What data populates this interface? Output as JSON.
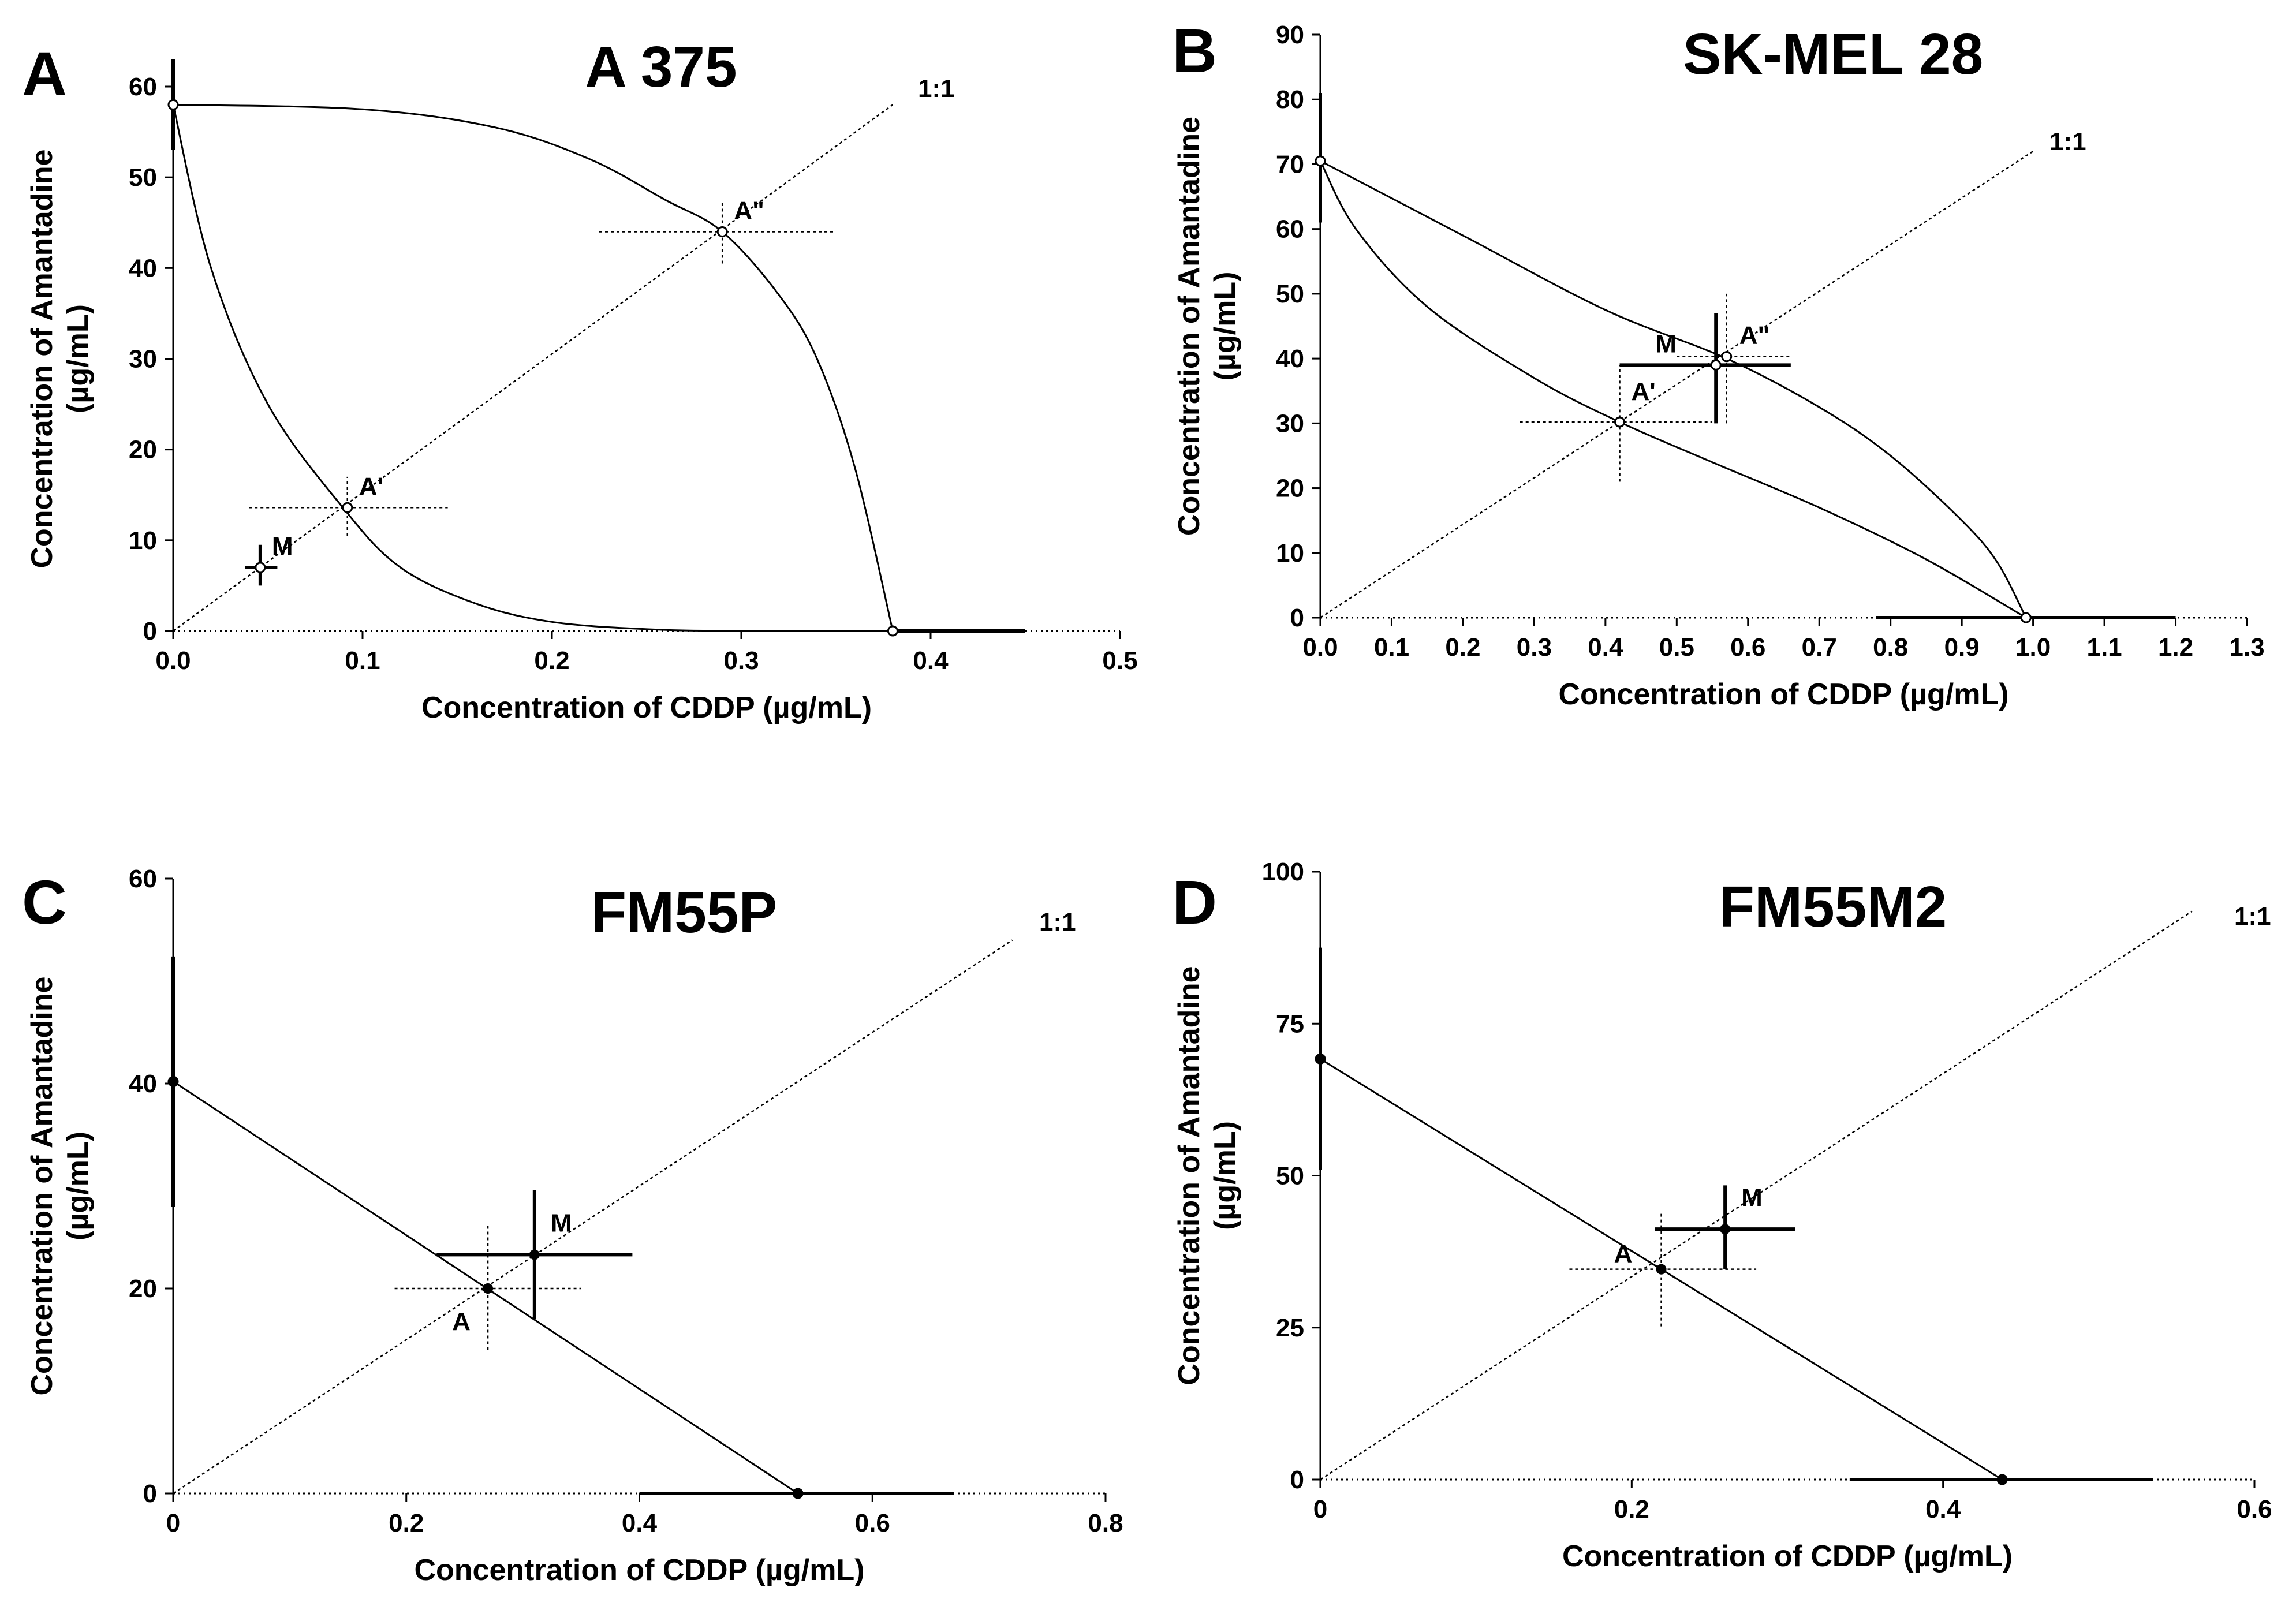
{
  "chart_data": [
    {
      "panel": "A",
      "title": "A 375",
      "type": "line",
      "xlabel": "Concentration of CDDP (µg/mL)",
      "ylabel": "Concentration of Amantadine",
      "ylabel_unit": "(µg/mL)",
      "xlim": [
        0,
        0.5
      ],
      "ylim": [
        0,
        60
      ],
      "xticks": [
        0,
        0.1,
        0.2,
        0.3,
        0.4,
        0.5
      ],
      "xtick_labels": [
        "0.0",
        "0.1",
        "0.2",
        "0.3",
        "0.4",
        "0.5"
      ],
      "yticks": [
        0,
        10,
        20,
        30,
        40,
        50,
        60
      ],
      "ytick_labels": [
        "0",
        "10",
        "20",
        "30",
        "40",
        "50",
        "60"
      ],
      "ray_end": [
        0.38,
        58
      ],
      "ray_label": "1:1",
      "isobole_lower": [
        [
          0,
          58
        ],
        [
          0.02,
          40
        ],
        [
          0.05,
          25
        ],
        [
          0.09,
          13.5
        ],
        [
          0.12,
          7
        ],
        [
          0.16,
          3
        ],
        [
          0.2,
          1
        ],
        [
          0.25,
          0.2
        ],
        [
          0.3,
          0
        ],
        [
          0.38,
          0
        ]
      ],
      "isobole_upper": [
        [
          0,
          58
        ],
        [
          0.1,
          57.5
        ],
        [
          0.17,
          55.5
        ],
        [
          0.22,
          52
        ],
        [
          0.26,
          47.5
        ],
        [
          0.29,
          44
        ],
        [
          0.32,
          37
        ],
        [
          0.34,
          30
        ],
        [
          0.36,
          18
        ],
        [
          0.38,
          0
        ]
      ],
      "anchors": [
        {
          "x": 0,
          "y": 58,
          "bar": "y",
          "lo": 53,
          "hi": 63
        },
        {
          "x": 0.38,
          "y": 0,
          "bar": "x",
          "lo": 0.38,
          "hi": 0.45
        }
      ],
      "points": [
        {
          "label": "A'",
          "x": 0.092,
          "y": 13.6,
          "xerr": [
            0.04,
            0.145
          ],
          "yerr": [
            10.5,
            17.0
          ]
        },
        {
          "label": "A\"",
          "x": 0.29,
          "y": 44,
          "xerr": [
            0.225,
            0.35
          ],
          "yerr": [
            40.5,
            47.5
          ]
        },
        {
          "label": "M",
          "x": 0.046,
          "y": 7.0,
          "xerr": [
            0.038,
            0.055
          ],
          "yerr": [
            5.0,
            9.5
          ]
        }
      ]
    },
    {
      "panel": "B",
      "title": "SK-MEL 28",
      "type": "line",
      "xlabel": "Concentration of CDDP (µg/mL)",
      "ylabel": "Concentration of Amantadine",
      "ylabel_unit": "(µg/mL)",
      "xlim": [
        0,
        1.3
      ],
      "ylim": [
        0,
        90
      ],
      "xticks": [
        0,
        0.1,
        0.2,
        0.3,
        0.4,
        0.5,
        0.6,
        0.7,
        0.8,
        0.9,
        1.0,
        1.1,
        1.2,
        1.3
      ],
      "xtick_labels": [
        "0.0",
        "0.1",
        "0.2",
        "0.3",
        "0.4",
        "0.5",
        "0.6",
        "0.7",
        "0.8",
        "0.9",
        "1.0",
        "1.1",
        "1.2",
        "1.3"
      ],
      "yticks": [
        0,
        10,
        20,
        30,
        40,
        50,
        60,
        70,
        80,
        90
      ],
      "ytick_labels": [
        "0",
        "10",
        "20",
        "30",
        "40",
        "50",
        "60",
        "70",
        "80",
        "90"
      ],
      "ray_end": [
        1.0,
        72
      ],
      "ray_label": "1:1",
      "isobole_lower": [
        [
          0,
          70.5
        ],
        [
          0.05,
          60
        ],
        [
          0.15,
          48
        ],
        [
          0.3,
          37
        ],
        [
          0.42,
          30.2
        ],
        [
          0.55,
          24
        ],
        [
          0.7,
          17
        ],
        [
          0.85,
          9
        ],
        [
          0.99,
          0
        ]
      ],
      "isobole_upper": [
        [
          0,
          70.5
        ],
        [
          0.2,
          59
        ],
        [
          0.4,
          47.5
        ],
        [
          0.57,
          40
        ],
        [
          0.7,
          32.5
        ],
        [
          0.8,
          25
        ],
        [
          0.9,
          15
        ],
        [
          0.95,
          8.5
        ],
        [
          0.99,
          0
        ]
      ],
      "anchors": [
        {
          "x": 0,
          "y": 70.5,
          "bar": "y",
          "lo": 61,
          "hi": 81
        },
        {
          "x": 0.99,
          "y": 0,
          "bar": "x",
          "lo": 0.78,
          "hi": 1.2
        }
      ],
      "points": [
        {
          "label": "A'",
          "x": 0.42,
          "y": 30.2,
          "xerr": [
            0.28,
            0.55
          ],
          "yerr": [
            21,
            39
          ]
        },
        {
          "label": "A\"",
          "x": 0.57,
          "y": 40.3,
          "xerr": [
            0.5,
            0.66
          ],
          "yerr": [
            30,
            50
          ]
        },
        {
          "label": "M",
          "x": 0.555,
          "y": 39,
          "xerr": [
            0.42,
            0.66
          ],
          "yerr": [
            30,
            47
          ]
        }
      ]
    },
    {
      "panel": "C",
      "title": "FM55P",
      "type": "line",
      "xlabel": "Concentration of CDDP (µg/mL)",
      "ylabel": "Concentration of Amantadine",
      "ylabel_unit": "(µg/mL)",
      "xlim": [
        0,
        0.8
      ],
      "ylim": [
        0,
        60
      ],
      "xticks": [
        0,
        0.2,
        0.4,
        0.6,
        0.8
      ],
      "xtick_labels": [
        "0",
        "0.2",
        "0.4",
        "0.6",
        "0.8"
      ],
      "yticks": [
        0,
        20,
        40,
        60
      ],
      "ytick_labels": [
        "0",
        "20",
        "40",
        "60"
      ],
      "ray_end": [
        0.72,
        54
      ],
      "ray_label": "1:1",
      "isobole_line": [
        [
          0,
          40.2
        ],
        [
          0.536,
          0
        ]
      ],
      "anchors": [
        {
          "x": 0,
          "y": 40.2,
          "bar": "y",
          "lo": 28,
          "hi": 52.4
        },
        {
          "x": 0.536,
          "y": 0,
          "bar": "x",
          "lo": 0.4,
          "hi": 0.67
        }
      ],
      "points": [
        {
          "label": "A",
          "x": 0.27,
          "y": 20,
          "xerr": [
            0.19,
            0.35
          ],
          "yerr": [
            14,
            26.2
          ],
          "style": "dashed"
        },
        {
          "label": "M",
          "x": 0.31,
          "y": 23.3,
          "xerr": [
            0.226,
            0.394
          ],
          "yerr": [
            17,
            29.6
          ],
          "style": "solid"
        }
      ]
    },
    {
      "panel": "D",
      "title": "FM55M2",
      "type": "line",
      "xlabel": "Concentration of CDDP (µg/mL)",
      "ylabel": "Concentration of Amantadine",
      "ylabel_unit": "(µg/mL)",
      "xlim": [
        0,
        0.6
      ],
      "ylim": [
        0,
        100
      ],
      "xticks": [
        0,
        0.2,
        0.4,
        0.6
      ],
      "xtick_labels": [
        "0",
        "0.2",
        "0.4",
        "0.6"
      ],
      "yticks": [
        0,
        25,
        50,
        75,
        100
      ],
      "ytick_labels": [
        "0",
        "25",
        "50",
        "75",
        "100"
      ],
      "ray_end": [
        0.56,
        93.5
      ],
      "ray_label": "1:1",
      "isobole_line": [
        [
          0,
          69.2
        ],
        [
          0.438,
          0
        ]
      ],
      "anchors": [
        {
          "x": 0,
          "y": 69.2,
          "bar": "y",
          "lo": 51,
          "hi": 87.5
        },
        {
          "x": 0.438,
          "y": 0,
          "bar": "x",
          "lo": 0.34,
          "hi": 0.535
        }
      ],
      "points": [
        {
          "label": "A",
          "x": 0.219,
          "y": 34.6,
          "xerr": [
            0.16,
            0.28
          ],
          "yerr": [
            25.2,
            43.9
          ],
          "style": "dashed"
        },
        {
          "label": "M",
          "x": 0.26,
          "y": 41.2,
          "xerr": [
            0.215,
            0.305
          ],
          "yerr": [
            34.6,
            48.4
          ],
          "style": "solid"
        }
      ]
    }
  ]
}
